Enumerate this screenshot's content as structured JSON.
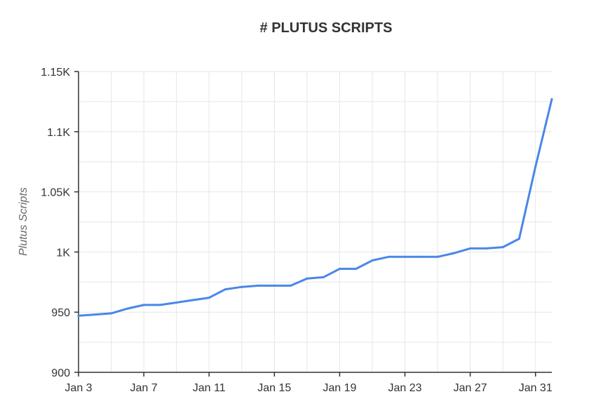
{
  "chart_data": {
    "type": "line",
    "title": "# PLUTUS SCRIPTS",
    "xlabel": "",
    "ylabel": "Plutus Scripts",
    "ylim": [
      900,
      1150
    ],
    "y_ticks": [
      900,
      950,
      1000,
      1050,
      1100,
      1150
    ],
    "y_tick_labels": [
      "900",
      "950",
      "1K",
      "1.05K",
      "1.1K",
      "1.15K"
    ],
    "x_tick_labels": [
      "Jan 3",
      "Jan 7",
      "Jan 11",
      "Jan 15",
      "Jan 19",
      "Jan 23",
      "Jan 27",
      "Jan 31"
    ],
    "x_tick_days": [
      3,
      7,
      11,
      15,
      19,
      23,
      27,
      31
    ],
    "xlim": [
      3,
      32
    ],
    "grid": true,
    "legend": "none",
    "line_color": "#4a86e8",
    "series": [
      {
        "x": [
          3,
          4,
          5,
          6,
          7,
          8,
          9,
          10,
          11,
          12,
          13,
          14,
          15,
          16,
          17,
          18,
          19,
          20,
          21,
          22,
          23,
          24,
          25,
          26,
          27,
          28,
          29,
          30,
          31,
          32
        ],
        "values": [
          947,
          948,
          949,
          953,
          956,
          956,
          958,
          960,
          962,
          969,
          971,
          972,
          972,
          972,
          978,
          979,
          986,
          986,
          993,
          996,
          996,
          996,
          996,
          999,
          1003,
          1003,
          1004,
          1011,
          1071,
          1127
        ]
      }
    ]
  }
}
